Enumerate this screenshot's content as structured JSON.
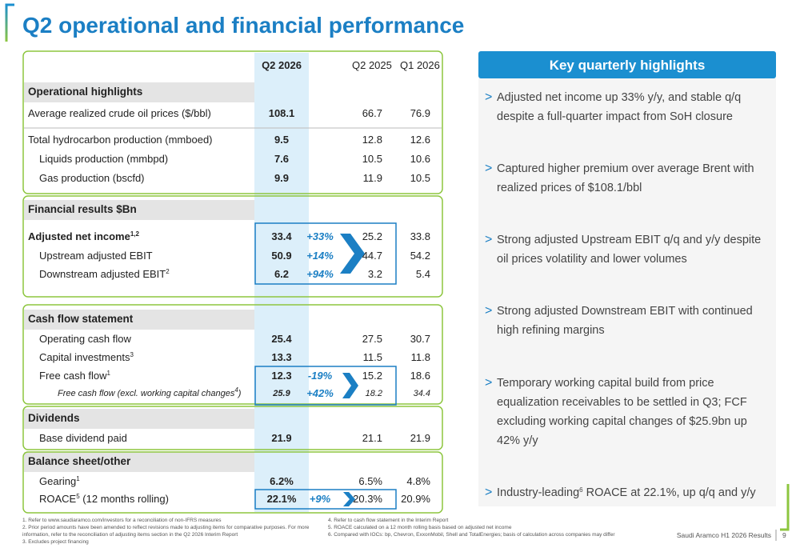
{
  "title": "Q2 operational and financial performance",
  "table": {
    "columns": [
      "Q2 2026",
      "Q2 2025",
      "Q1 2026"
    ],
    "sections": [
      {
        "heading": "Operational highlights",
        "rows": [
          {
            "label": "Average realized crude oil prices ($/bbl)",
            "q2_2026": "108.1",
            "q2_2025": "66.7",
            "q1_2026": "76.9"
          },
          {
            "label": "Total hydrocarbon production (mmboed)",
            "q2_2026": "9.5",
            "q2_2025": "12.8",
            "q1_2026": "12.6"
          },
          {
            "label": "Liquids production (mmbpd)",
            "q2_2026": "7.6",
            "q2_2025": "10.5",
            "q1_2026": "10.6"
          },
          {
            "label": "Gas production (bscfd)",
            "q2_2026": "9.9",
            "q2_2025": "11.9",
            "q1_2026": "10.5"
          }
        ]
      },
      {
        "heading": "Financial results $Bn",
        "rows": [
          {
            "label": "Adjusted net income",
            "sup": "1,2",
            "q2_2026": "33.4",
            "change": "+33%",
            "q2_2025": "25.2",
            "q1_2026": "33.8"
          },
          {
            "label": "Upstream adjusted EBIT",
            "q2_2026": "50.9",
            "change": "+14%",
            "q2_2025": "44.7",
            "q1_2026": "54.2"
          },
          {
            "label": "Downstream adjusted EBIT",
            "sup": "2",
            "q2_2026": "6.2",
            "change": "+94%",
            "q2_2025": "3.2",
            "q1_2026": "5.4"
          }
        ]
      },
      {
        "heading": "Cash flow statement",
        "rows": [
          {
            "label": "Operating cash flow",
            "q2_2026": "25.4",
            "q2_2025": "27.5",
            "q1_2026": "30.7"
          },
          {
            "label": "Capital investments",
            "sup": "3",
            "q2_2026": "13.3",
            "q2_2025": "11.5",
            "q1_2026": "11.8"
          },
          {
            "label": "Free cash flow",
            "sup": "1",
            "q2_2026": "12.3",
            "change": "-19%",
            "q2_2025": "15.2",
            "q1_2026": "18.6"
          },
          {
            "label": "Free cash flow (excl. working capital changes",
            "sup": "4",
            "label_end": ")",
            "q2_2026": "25.9",
            "change": "+42%",
            "q2_2025": "18.2",
            "q1_2026": "34.4"
          }
        ]
      },
      {
        "heading": "Dividends",
        "rows": [
          {
            "label": "Base dividend paid",
            "q2_2026": "21.9",
            "q2_2025": "21.1",
            "q1_2026": "21.9"
          }
        ]
      },
      {
        "heading": "Balance sheet/other",
        "rows": [
          {
            "label": "Gearing",
            "sup": "1",
            "q2_2026": "6.2%",
            "q2_2025": "6.5%",
            "q1_2026": "4.8%"
          },
          {
            "label": "ROACE",
            "sup": "5",
            "label_end": " (12 months rolling)",
            "q2_2026": "22.1%",
            "change": "+9%",
            "q2_2025": "20.3%",
            "q1_2026": "20.9%"
          }
        ]
      }
    ]
  },
  "highlights": {
    "title": "Key quarterly highlights",
    "items": [
      {
        "text": "Adjusted net income up 33% y/y, and stable q/q despite a full-quarter impact from SoH closure"
      },
      {
        "text": "Captured higher premium over average Brent with realized prices of $108.1/bbl"
      },
      {
        "text": "Strong adjusted Upstream EBIT q/q and y/y despite oil prices volatility and lower volumes"
      },
      {
        "text": "Strong adjusted Downstream EBIT with continued high refining margins"
      },
      {
        "text": "Temporary working capital build from price equalization receivables to be settled in Q3; FCF excluding working capital changes of $25.9bn up 42% y/y"
      },
      {
        "text": "Industry-leading",
        "sup": "6",
        "rest": " ROACE at 22.1%, up q/q and y/y"
      }
    ]
  },
  "footnotes": {
    "left": [
      "1.  Refer to www.saudiaramco.com/investors for a reconciliation of non-IFRS measures",
      "2.  Prior period amounts have been amended to reflect revisions made to adjusting items for comparative purposes. For more information, refer to the reconciliation of adjusting items section in the Q2 2026 Interim Report",
      "3.  Excludes project financing"
    ],
    "right": [
      "4.  Refer to cash flow statement in the Interim Report",
      "5.  ROACE calculated on a 12 month rolling basis based on adjusted net income",
      "6.  Compared with IOCs: bp, Chevron, ExxonMobil, Shell and TotalEnergies; basis of calculation across companies may differ"
    ]
  },
  "footer": {
    "text": "Saudi Aramco H1 2026 Results",
    "page": "9"
  }
}
